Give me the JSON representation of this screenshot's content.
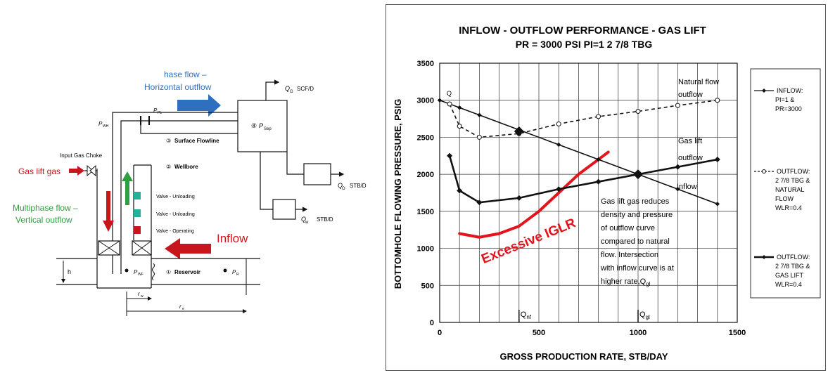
{
  "schematic": {
    "horizontal_flow_label_1": "hase flow –",
    "horizontal_flow_label_2": "Horizontal outflow",
    "qg_label": "Q",
    "qg_sub": "G",
    "qg_unit": "SCF/D",
    "ppl_label": "P",
    "ppl_sub": "PL",
    "pwh_label": "P",
    "pwh_sub": "WH",
    "psep_label": "P",
    "psep_sub": "Sep",
    "psep_num": "④",
    "surface_flowline": "Surface Flowline",
    "surface_flowline_num": "③",
    "wellbore": "Wellbore",
    "wellbore_num": "②",
    "input_gas_choke": "Input Gas Choke",
    "gas_lift_gas": "Gas lift gas",
    "multiphase_label_1": "Multiphase flow –",
    "multiphase_label_2": "Vertical outflow",
    "valve_1": "Valve - Unloading",
    "valve_2": "Valve - Unloading",
    "valve_3": "Valve - Operating",
    "inflow": "Inflow",
    "qo_label": "Q",
    "qo_sub": "O",
    "qo_unit": "STB/D",
    "qw_label": "Q",
    "qw_sub": "w",
    "qw_unit": "STB/D",
    "reservoir": "Reservoir",
    "reservoir_num": "①",
    "pwf_label": "P",
    "pwf_sub": "WF",
    "pr_label": "P",
    "pr_sub": "R",
    "h_label": "h",
    "rw_label": "r",
    "rw_sub": "w",
    "re_label": "r",
    "re_sub": "e",
    "colors": {
      "blue": "#2f6fc0",
      "red": "#c8161d",
      "green": "#2e9e3e",
      "teal": "#21b39a"
    }
  },
  "chart_data": {
    "type": "line",
    "title_line1": "INFLOW - OUTFLOW PERFORMANCE - GAS LIFT",
    "title_line2": "PR = 3000 PSI   PI=1   2 7/8 TBG",
    "xlabel": "GROSS PRODUCTION RATE, STB/DAY",
    "ylabel": "BOTTOMHOLE FLOWING PRESSURE, PSIG",
    "xlim": [
      0,
      1500
    ],
    "ylim": [
      0,
      3500
    ],
    "x_ticks": [
      0,
      500,
      1000,
      1500
    ],
    "y_ticks": [
      0,
      500,
      1000,
      1500,
      2000,
      2500,
      3000,
      3500
    ],
    "grid": true,
    "legend_position": "right",
    "series": [
      {
        "name": "INFLOW: PI=1 & PR=3000",
        "style": "solid-diamond",
        "x": [
          0,
          100,
          200,
          400,
          600,
          800,
          1000,
          1200,
          1400
        ],
        "y": [
          3000,
          2900,
          2800,
          2600,
          2400,
          2200,
          2000,
          1800,
          1600
        ]
      },
      {
        "name": "OUTFLOW: 2 7/8 TBG & NATURAL FLOW WLR=0.4",
        "style": "dashed-circle",
        "x": [
          50,
          100,
          200,
          400,
          600,
          800,
          1000,
          1200,
          1400
        ],
        "y": [
          2950,
          2650,
          2500,
          2550,
          2680,
          2780,
          2850,
          2930,
          3000
        ]
      },
      {
        "name": "OUTFLOW: 2 7/8 TBG & GAS LIFT WLR=0.4",
        "style": "solid-bold-diamond",
        "x": [
          50,
          100,
          200,
          400,
          600,
          800,
          1000,
          1200,
          1400
        ],
        "y": [
          2250,
          1780,
          1620,
          1680,
          1800,
          1900,
          2000,
          2100,
          2200
        ]
      }
    ],
    "legend_entries": [
      "INFLOW:",
      "PI=1 &",
      "PR=3000",
      "OUTFLOW:",
      "2 7/8 TBG &",
      "NATURAL",
      "FLOW",
      "WLR=0.4",
      "OUTFLOW:",
      "2 7/8 TBG &",
      "GAS LIFT",
      "WLR=0.4"
    ],
    "excessive_curve": {
      "label": "Excessive IGLR",
      "x": [
        100,
        200,
        300,
        400,
        500,
        600,
        700,
        800,
        850
      ],
      "y": [
        1200,
        1150,
        1200,
        1300,
        1500,
        1750,
        2000,
        2200,
        2300
      ]
    },
    "intersections": [
      {
        "x": 400,
        "y": 2580,
        "label": "Q",
        "sub": "nf"
      },
      {
        "x": 1000,
        "y": 2000,
        "label": "Q",
        "sub": "gl"
      }
    ],
    "annotations": {
      "natural_flow_1": "Natural flow",
      "natural_flow_2": "outflow",
      "gas_lift_1": "Gas lift",
      "gas_lift_2": "outflow",
      "inflow": "Inflow",
      "q_marker": "Q",
      "note_lines": [
        "Gas lift gas reduces",
        "density and pressure",
        "of outflow curve",
        "compared to natural",
        "flow. Intersection",
        "with inflow curve is at",
        "higher rate,Q"
      ],
      "note_sub": "gl"
    },
    "colors": {
      "line": "#111111",
      "excess": "#e2141c",
      "grid": "#333333"
    }
  }
}
